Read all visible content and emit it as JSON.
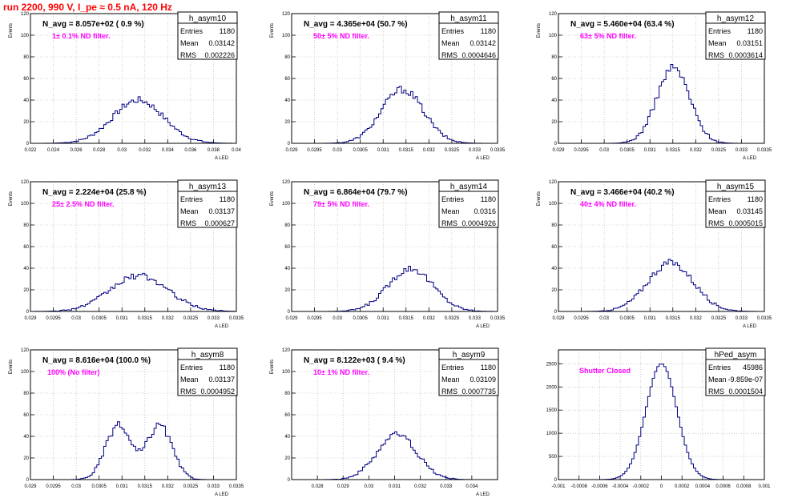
{
  "run_title": "run 2200,   990 V, I_pe ≈ 0.5 nA, 120 Hz",
  "colors": {
    "hist": "#000080",
    "title": "#ff0000",
    "filter": "#ff00ff",
    "grid": "#aaaaaa"
  },
  "stat_labels": {
    "entries": "Entries",
    "mean": "Mean",
    "rms": "RMS"
  },
  "chart_data": [
    {
      "type": "bar",
      "name": "h_asym10",
      "annotation": "N_avg = 8.057e+02 ( 0.9 %)",
      "filter_label": "1± 0.1% ND filter.",
      "stats": {
        "entries": "1180",
        "mean": "0.03142",
        "rms": "0.002226"
      },
      "ylabel": "Events",
      "xlabel": "A_LED",
      "grid": true,
      "xlim": [
        0.022,
        0.04
      ],
      "ylim": [
        0,
        120
      ],
      "xticks": [
        "0.022",
        "0.024",
        "0.026",
        "0.028",
        "0.03",
        "0.032",
        "0.034",
        "0.036",
        "0.038",
        "0.04"
      ],
      "yticks": [
        "0",
        "20",
        "40",
        "60",
        "80",
        "100",
        "120"
      ],
      "mean": 0.03142,
      "sigma": 0.00223,
      "peak": 40
    },
    {
      "type": "bar",
      "name": "h_asym11",
      "annotation": "N_avg = 4.365e+04 (50.7 %)",
      "filter_label": "50± 5% ND filter.",
      "stats": {
        "entries": "1180",
        "mean": "0.03142",
        "rms": "0.0004646"
      },
      "ylabel": "Events",
      "xlabel": "A_LED",
      "grid": true,
      "xlim": [
        0.029,
        0.0335
      ],
      "ylim": [
        0,
        120
      ],
      "xticks": [
        "0.029",
        "0.0295",
        "0.03",
        "0.0305",
        "0.031",
        "0.0315",
        "0.032",
        "0.0325",
        "0.033",
        "0.0335"
      ],
      "yticks": [
        "0",
        "20",
        "40",
        "60",
        "80",
        "100",
        "120"
      ],
      "mean": 0.03142,
      "sigma": 0.00046,
      "peak": 50
    },
    {
      "type": "bar",
      "name": "h_asym12",
      "annotation": "N_avg = 5.460e+04 (63.4 %)",
      "filter_label": "63± 5% ND filter.",
      "stats": {
        "entries": "1180",
        "mean": "0.03151",
        "rms": "0.0003614"
      },
      "ylabel": "Events",
      "xlabel": "A_LED",
      "grid": true,
      "xlim": [
        0.029,
        0.0335
      ],
      "ylim": [
        0,
        120
      ],
      "xticks": [
        "0.029",
        "0.0295",
        "0.03",
        "0.0305",
        "0.031",
        "0.0315",
        "0.032",
        "0.0325",
        "0.033",
        "0.0335"
      ],
      "yticks": [
        "0",
        "20",
        "40",
        "60",
        "80",
        "100",
        "120"
      ],
      "mean": 0.03151,
      "sigma": 0.00036,
      "peak": 70
    },
    {
      "type": "bar",
      "name": "h_asym13",
      "annotation": "N_avg = 2.224e+04 (25.8 %)",
      "filter_label": "25± 2.5% ND filter.",
      "stats": {
        "entries": "1180",
        "mean": "0.03137",
        "rms": "0.000627"
      },
      "ylabel": "Events",
      "xlabel": "A_LED",
      "grid": true,
      "xlim": [
        0.029,
        0.0335
      ],
      "ylim": [
        0,
        120
      ],
      "xticks": [
        "0.029",
        "0.0295",
        "0.03",
        "0.0305",
        "0.031",
        "0.0315",
        "0.032",
        "0.0325",
        "0.033",
        "0.0335"
      ],
      "yticks": [
        "0",
        "20",
        "40",
        "60",
        "80",
        "100",
        "120"
      ],
      "mean": 0.03137,
      "sigma": 0.00063,
      "peak": 33
    },
    {
      "type": "bar",
      "name": "h_asym14",
      "annotation": "N_avg = 6.864e+04 (79.7 %)",
      "filter_label": "79± 5% ND filter.",
      "stats": {
        "entries": "1180",
        "mean": "0.0316",
        "rms": "0.0004926"
      },
      "ylabel": "Events",
      "xlabel": "A_LED",
      "grid": true,
      "xlim": [
        0.029,
        0.0335
      ],
      "ylim": [
        0,
        120
      ],
      "xticks": [
        "0.029",
        "0.0295",
        "0.03",
        "0.0305",
        "0.031",
        "0.0315",
        "0.032",
        "0.0325",
        "0.033",
        "0.0335"
      ],
      "yticks": [
        "0",
        "20",
        "40",
        "60",
        "80",
        "100",
        "120"
      ],
      "mean": 0.0316,
      "sigma": 0.00049,
      "peak": 40
    },
    {
      "type": "bar",
      "name": "h_asym15",
      "annotation": "N_avg = 3.466e+04 (40.2 %)",
      "filter_label": "40± 4% ND filter.",
      "stats": {
        "entries": "1180",
        "mean": "0.03145",
        "rms": "0.0005015"
      },
      "ylabel": "Events",
      "xlabel": "A_LED",
      "grid": true,
      "xlim": [
        0.029,
        0.0335
      ],
      "ylim": [
        0,
        120
      ],
      "xticks": [
        "0.029",
        "0.0295",
        "0.03",
        "0.0305",
        "0.031",
        "0.0315",
        "0.032",
        "0.0325",
        "0.033",
        "0.0335"
      ],
      "yticks": [
        "0",
        "20",
        "40",
        "60",
        "80",
        "100",
        "120"
      ],
      "mean": 0.03145,
      "sigma": 0.0005,
      "peak": 45
    },
    {
      "type": "bar",
      "name": "h_asym8",
      "annotation": "N_avg = 8.616e+04 (100.0 %)",
      "filter_label": "100% (No filter)",
      "stats": {
        "entries": "1180",
        "mean": "0.03137",
        "rms": "0.0004952"
      },
      "ylabel": "Events",
      "xlabel": "A_LED",
      "grid": true,
      "xlim": [
        0.029,
        0.0335
      ],
      "ylim": [
        0,
        120
      ],
      "xticks": [
        "0.029",
        "0.0295",
        "0.03",
        "0.0305",
        "0.031",
        "0.0315",
        "0.032",
        "0.0325",
        "0.033",
        "0.0335"
      ],
      "yticks": [
        "0",
        "20",
        "40",
        "60",
        "80",
        "100",
        "120"
      ],
      "mean": 0.03137,
      "sigma": 0.0005,
      "peak": 50,
      "bimodal": true
    },
    {
      "type": "bar",
      "name": "h_asym9",
      "annotation": "N_avg = 8.122e+03 ( 9.4 %)",
      "filter_label": "10± 1% ND filter.",
      "stats": {
        "entries": "1180",
        "mean": "0.03109",
        "rms": "0.0007735"
      },
      "ylabel": "Events",
      "xlabel": "A_LED",
      "grid": true,
      "xlim": [
        0.027,
        0.035
      ],
      "ylim": [
        0,
        120
      ],
      "xticks": [
        "0.028",
        "0.029",
        "0.03",
        "0.031",
        "0.032",
        "0.033",
        "0.034"
      ],
      "yticks": [
        "0",
        "20",
        "40",
        "60",
        "80",
        "100",
        "120"
      ],
      "mean": 0.03109,
      "sigma": 0.00077,
      "peak": 42
    },
    {
      "type": "bar",
      "name": "hPed_asym",
      "annotation": "",
      "filter_label": "Shutter Closed",
      "stats": {
        "entries": "45986",
        "mean": "-9.859e-07",
        "rms": "0.0001504"
      },
      "ylabel": "",
      "xlabel": "",
      "grid": true,
      "xlim": [
        -0.001,
        0.001
      ],
      "ylim": [
        0,
        2800
      ],
      "xticks": [
        "-0.001",
        "-0.0008",
        "-0.0006",
        "-0.0004",
        "-0.0002",
        "0",
        "0.0002",
        "0.0004",
        "0.0006",
        "0.0008",
        "0.001"
      ],
      "yticks": [
        "0",
        "500",
        "1000",
        "1500",
        "2000",
        "2500"
      ],
      "mean": 0.0,
      "sigma": 0.00015,
      "peak": 2500
    }
  ]
}
